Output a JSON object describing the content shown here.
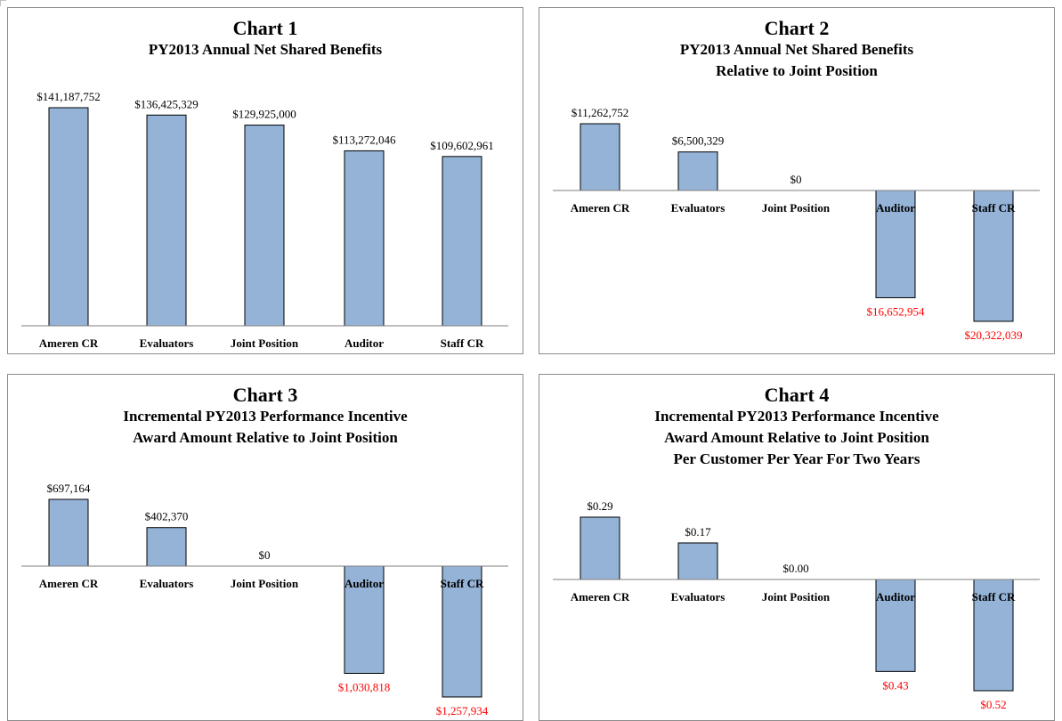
{
  "chart_data": [
    {
      "type": "bar",
      "title": "Chart 1",
      "subtitle": [
        "PY2013 Annual Net Shared Benefits"
      ],
      "categories": [
        "Ameren CR",
        "Evaluators",
        "Joint Position",
        "Auditor",
        "Staff CR"
      ],
      "values": [
        141187752,
        136425329,
        129925000,
        113272046,
        109602961
      ],
      "data_labels": [
        "$141,187,752",
        "$136,425,329",
        "$129,925,000",
        "$113,272,046",
        "$109,602,961"
      ],
      "ylim": [
        0,
        141187752
      ],
      "bar_color": "#95b3d7",
      "negative_label_color": "#ff0000",
      "grid": false
    },
    {
      "type": "bar",
      "title": "Chart 2",
      "subtitle": [
        "PY2013 Annual Net Shared Benefits",
        "Relative to Joint Position"
      ],
      "categories": [
        "Ameren CR",
        "Evaluators",
        "Joint Position",
        "Auditor",
        "Staff CR"
      ],
      "values": [
        11262752,
        6500329,
        0,
        -16652954,
        -20322039
      ],
      "data_labels": [
        "$11,262,752",
        "$6,500,329",
        "$0",
        "$16,652,954",
        "$20,322,039"
      ],
      "ylim": [
        -20322039,
        11262752
      ],
      "bar_color": "#95b3d7",
      "negative_label_color": "#ff0000",
      "grid": false
    },
    {
      "type": "bar",
      "title": "Chart 3",
      "subtitle": [
        "Incremental PY2013 Performance Incentive",
        "Award Amount Relative to Joint Position"
      ],
      "categories": [
        "Ameren CR",
        "Evaluators",
        "Joint Position",
        "Auditor",
        "Staff CR"
      ],
      "values": [
        697164,
        402370,
        0,
        -1030818,
        -1257934
      ],
      "data_labels": [
        "$697,164",
        "$402,370",
        "$0",
        "$1,030,818",
        "$1,257,934"
      ],
      "ylim": [
        -1257934,
        697164
      ],
      "bar_color": "#95b3d7",
      "negative_label_color": "#ff0000",
      "grid": false
    },
    {
      "type": "bar",
      "title": "Chart 4",
      "subtitle": [
        "Incremental PY2013 Performance Incentive",
        "Award Amount Relative to Joint Position",
        "Per Customer Per Year For Two Years"
      ],
      "categories": [
        "Ameren CR",
        "Evaluators",
        "Joint Position",
        "Auditor",
        "Staff CR"
      ],
      "values": [
        0.29,
        0.17,
        0.0,
        -0.43,
        -0.52
      ],
      "data_labels": [
        "$0.29",
        "$0.17",
        "$0.00",
        "$0.43",
        "$0.52"
      ],
      "ylim": [
        -0.52,
        0.29
      ],
      "bar_color": "#95b3d7",
      "negative_label_color": "#ff0000",
      "grid": false
    }
  ]
}
